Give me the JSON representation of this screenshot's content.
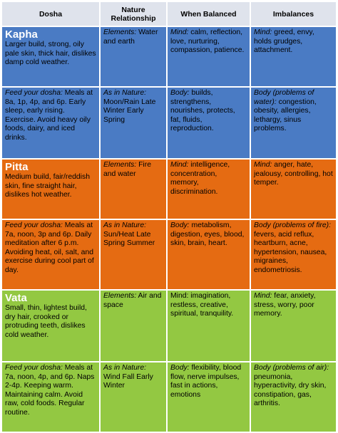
{
  "header": {
    "dosha": "Dosha",
    "nature": "Nature Relationship",
    "balanced": "When Balanced",
    "imbalances": "Imbalances"
  },
  "colors": {
    "header_bg": "#dfe3ec",
    "kapha": "#4a7bc4",
    "pitta": "#e56b12",
    "vata": "#93c842"
  },
  "kapha": {
    "name": "Kapha",
    "description": "Larger build, strong, oily pale skin, thick hair, dislikes damp cold weather.",
    "elements_label": "Elements:",
    "elements_text": " Water and earth",
    "mind_label": "Mind:",
    "mind_text": " calm, reflection, love, nurturing, compassion, patience.",
    "imb_mind_label": "Mind:",
    "imb_mind_text": " greed, envy, holds grudges, attachment.",
    "feed_label": "Feed your dosha:",
    "feed_text": " Meals at 8a, 1p, 4p, and 6p. Early sleep, early rising. Exercise. Avoid heavy oily foods, dairy, and iced drinks.",
    "nature_label": "As in Nature:",
    "nature_text": " Moon/Rain Late Winter Early Spring",
    "body_label": "Body:",
    "body_text": " builds, strengthens, nourishes, protects, fat, fluids, reproduction.",
    "imb_body_label": "Body (problems of water):",
    "imb_body_text": " congestion, obesity, allergies, lethargy, sinus problems."
  },
  "pitta": {
    "name": "Pitta",
    "description": "Medium build, fair/reddish skin, fine straight hair, dislikes hot weather.",
    "elements_label": "Elements:",
    "elements_text": " Fire and water",
    "mind_label": "Mind:",
    "mind_text": " intelligence, concentration, memory, discrimination.",
    "imb_mind_label": "Mind:",
    "imb_mind_text": " anger, hate, jealousy, controlling, hot temper.",
    "feed_label": "Feed your dosha:",
    "feed_text": " Meals at 7a, noon, 3p and 6p. Daily meditation after 6 p.m. Avoiding heat, oil, salt, and exercise during cool part of day.",
    "nature_label": "As in Nature:",
    "nature_text": " Sun/Heat Late Spring Summer",
    "body_label": "Body:",
    "body_text": " metabolism, digestion, eyes, blood, skin, brain, heart.",
    "imb_body_label": "Body (problems of fire):",
    "imb_body_text": " fevers, acid reflux, heartburn, acne, hypertension, nausea, migraines, endometriosis."
  },
  "vata": {
    "name": "Vata",
    "description": "Small, thin, lightest build, dry hair, crooked or protruding teeth, dislikes cold weather.",
    "elements_label": "Elements:",
    "elements_text": " Air and space",
    "mind_text_full": "Mind: imagination, restless, creative, spiritual, tranquility.",
    "imb_mind_label": "Mind:",
    "imb_mind_text": " fear, anxiety, stress, worry, poor memory.",
    "feed_label": "Feed your dosha:",
    "feed_text": " Meals at 7a, noon, 4p, and 6p. Naps 2-4p. Keeping warm. Maintaining calm. Avoid raw, cold foods. Regular routine.",
    "nature_label": "As in Nature:",
    "nature_text": " Wind Fall Early Winter",
    "body_label": "Body:",
    "body_text": " flexibility, blood flow, nerve impulses, fast in actions, emotions",
    "imb_body_label": "Body (problems of air):",
    "imb_body_text": " pneumonia, hyperactivity, dry skin, constipation, gas, arthritis."
  }
}
